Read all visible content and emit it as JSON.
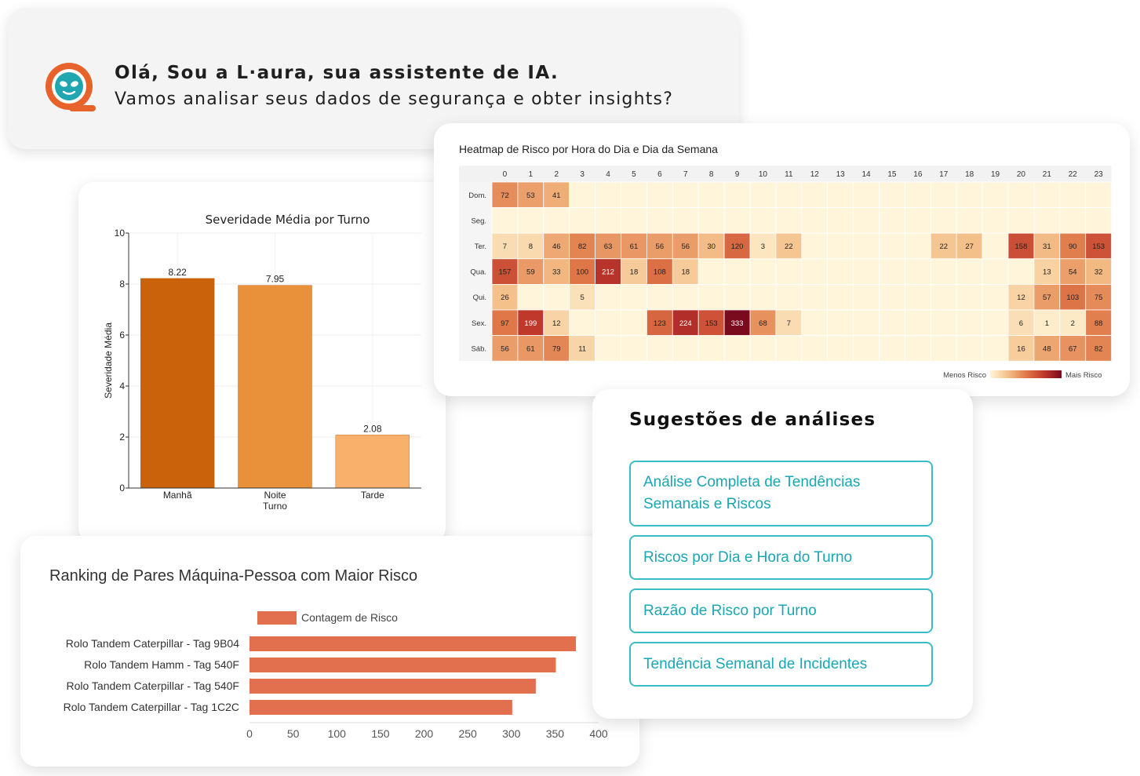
{
  "greeting": {
    "line1": "Olá, Sou a L·aura, sua assistente de IA.",
    "line2": "Vamos analisar seus dados de segurança e obter insights?",
    "logo_icon": "laura-assistant-logo-icon",
    "logo_colors": {
      "ring": "#e8632b",
      "face": "#1fa6b0"
    }
  },
  "severity_chart": {
    "chart_data": {
      "type": "bar",
      "title": "Severidade Média por Turno",
      "xlabel": "Turno",
      "ylabel": "Severidade Média",
      "categories": [
        "Manhã",
        "Noite",
        "Tarde"
      ],
      "values": [
        8.22,
        7.95,
        2.08
      ],
      "value_labels": [
        "8.22",
        "7.95",
        "2.08"
      ],
      "colors": [
        "#c9620a",
        "#e9903a",
        "#f9b06a"
      ],
      "ylim": [
        0,
        10
      ],
      "yticks": [
        "0",
        "2",
        "4",
        "6",
        "8",
        "10"
      ],
      "grid": true
    }
  },
  "heatmap": {
    "chart_data": {
      "type": "heatmap",
      "title": "Heatmap de Risco por Hora do Dia e Dia da Semana",
      "x": [
        "0",
        "1",
        "2",
        "3",
        "4",
        "5",
        "6",
        "7",
        "8",
        "9",
        "10",
        "11",
        "12",
        "13",
        "14",
        "15",
        "16",
        "17",
        "18",
        "19",
        "20",
        "21",
        "22",
        "23"
      ],
      "y": [
        "Dom.",
        "Seg.",
        "Ter.",
        "Qua.",
        "Qui.",
        "Sex.",
        "Sáb."
      ],
      "values": [
        [
          72,
          53,
          41,
          null,
          null,
          null,
          null,
          null,
          null,
          null,
          null,
          null,
          null,
          null,
          null,
          null,
          null,
          null,
          null,
          null,
          null,
          null,
          null,
          null
        ],
        [
          null,
          null,
          null,
          null,
          null,
          null,
          null,
          null,
          null,
          null,
          null,
          null,
          null,
          null,
          null,
          null,
          null,
          null,
          null,
          null,
          null,
          null,
          null,
          null
        ],
        [
          7,
          8,
          46,
          82,
          63,
          61,
          56,
          56,
          30,
          120,
          3,
          22,
          null,
          null,
          null,
          null,
          null,
          22,
          27,
          null,
          158,
          31,
          90,
          153
        ],
        [
          157,
          59,
          33,
          100,
          212,
          18,
          108,
          18,
          null,
          null,
          null,
          null,
          null,
          null,
          null,
          null,
          null,
          null,
          null,
          null,
          null,
          13,
          54,
          32
        ],
        [
          26,
          null,
          null,
          5,
          null,
          null,
          null,
          null,
          null,
          null,
          null,
          null,
          null,
          null,
          null,
          null,
          null,
          null,
          null,
          null,
          12,
          57,
          103,
          75
        ],
        [
          97,
          199,
          12,
          null,
          null,
          null,
          123,
          224,
          153,
          333,
          68,
          7,
          null,
          null,
          null,
          null,
          null,
          null,
          null,
          null,
          6,
          1,
          2,
          88
        ],
        [
          56,
          61,
          79,
          11,
          null,
          null,
          null,
          null,
          null,
          null,
          null,
          null,
          null,
          null,
          null,
          null,
          null,
          null,
          null,
          null,
          16,
          48,
          67,
          82
        ]
      ],
      "legend_low": "Menos Risco",
      "legend_high": "Mais Risco",
      "colorscale": [
        "#fff6d8",
        "#f4c089",
        "#e07a4a",
        "#c0392b",
        "#7a0a1e"
      ]
    }
  },
  "ranking_chart": {
    "chart_data": {
      "type": "bar",
      "orientation": "horizontal",
      "title": "Ranking de Pares Máquina-Pessoa com Maior Risco",
      "legend": "Contagem de Risco",
      "categories": [
        "Rolo Tandem Caterpillar - Tag 9B04",
        "Rolo Tandem Hamm - Tag 540F",
        "Rolo Tandem Caterpillar - Tag 540F",
        "Rolo Tandem Caterpillar - Tag 1C2C"
      ],
      "values": [
        374,
        351,
        328,
        301
      ],
      "xlim": [
        0,
        400
      ],
      "xticks": [
        "0",
        "50",
        "100",
        "150",
        "200",
        "250",
        "300",
        "350",
        "400"
      ],
      "color": "#e2704e"
    }
  },
  "suggestions": {
    "title": "Sugestões de análises",
    "items": [
      "Análise Completa de Tendências Semanais e Riscos",
      "Riscos por Dia e Hora do Turno",
      "Razão de Risco por Turno",
      "Tendência Semanal de Incidentes"
    ]
  }
}
